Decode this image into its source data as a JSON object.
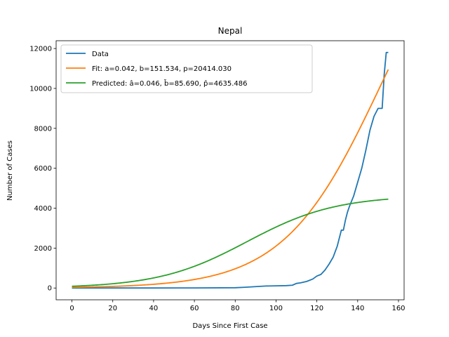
{
  "chart_data": {
    "type": "line",
    "title": "Nepal",
    "xlabel": "Days Since First Case",
    "ylabel": "Number of Cases",
    "xlim": [
      -7.75,
      162.75
    ],
    "ylim": [
      -590,
      12390
    ],
    "xticks": [
      0,
      20,
      40,
      60,
      80,
      100,
      120,
      140,
      160
    ],
    "yticks": [
      0,
      2000,
      4000,
      6000,
      8000,
      10000,
      12000
    ],
    "grid": false,
    "legend_position": "top-left",
    "series": [
      {
        "name": "Data",
        "color": "#1f77b4",
        "x": [
          0,
          20,
          40,
          60,
          80,
          85,
          90,
          95,
          100,
          105,
          108,
          110,
          112,
          115,
          118,
          120,
          122,
          124,
          126,
          128,
          130,
          132,
          133,
          134,
          135,
          136,
          138,
          140,
          142,
          144,
          146,
          148,
          150,
          152,
          153,
          154,
          155
        ],
        "y": [
          1,
          1,
          2,
          5,
          15,
          40,
          70,
          100,
          110,
          120,
          140,
          230,
          260,
          330,
          450,
          600,
          680,
          900,
          1200,
          1550,
          2100,
          2900,
          2900,
          3400,
          3800,
          4100,
          4600,
          5300,
          6000,
          6900,
          7900,
          8600,
          9000,
          9000,
          10700,
          11800,
          11800
        ]
      },
      {
        "name": "Fit: a=0.042, b=151.534, p=20414.030",
        "color": "#ff7f0e",
        "model": "logistic",
        "a": 0.042,
        "b": 151.534,
        "p": 20414.03,
        "x_range": [
          0,
          155
        ]
      },
      {
        "name": "Predicted: â=0.046, b̆=85.690, p̂=4635.486",
        "color": "#2ca02c",
        "model": "logistic",
        "a": 0.046,
        "b": 85.69,
        "p": 4635.486,
        "x_range": [
          0,
          155
        ]
      }
    ]
  }
}
